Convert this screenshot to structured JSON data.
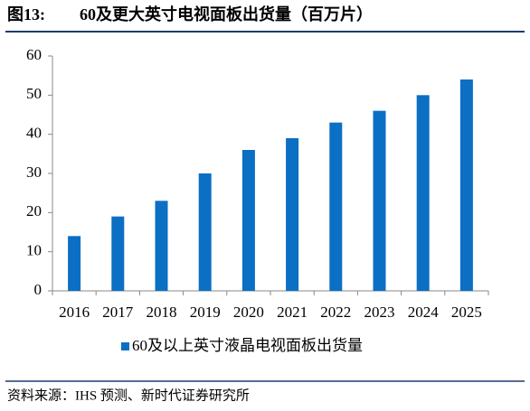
{
  "chart_data": {
    "type": "bar",
    "figure_label": "图13:",
    "title": "60及更大英寸电视面板出货量（百万片）",
    "categories": [
      "2016",
      "2017",
      "2018",
      "2019",
      "2020",
      "2021",
      "2022",
      "2023",
      "2024",
      "2025"
    ],
    "series": [
      {
        "name": "60及以上英寸液晶电视面板出货量",
        "color": "#0b6fc4",
        "values": [
          14,
          19,
          23,
          30,
          36,
          39,
          43,
          46,
          50,
          54
        ]
      }
    ],
    "ylim": [
      0,
      60
    ],
    "yticks": [
      0,
      10,
      20,
      30,
      40,
      50,
      60
    ],
    "grid": false,
    "legend": "bottom",
    "source": "资料来源：IHS 预测、新时代证券研究所"
  }
}
